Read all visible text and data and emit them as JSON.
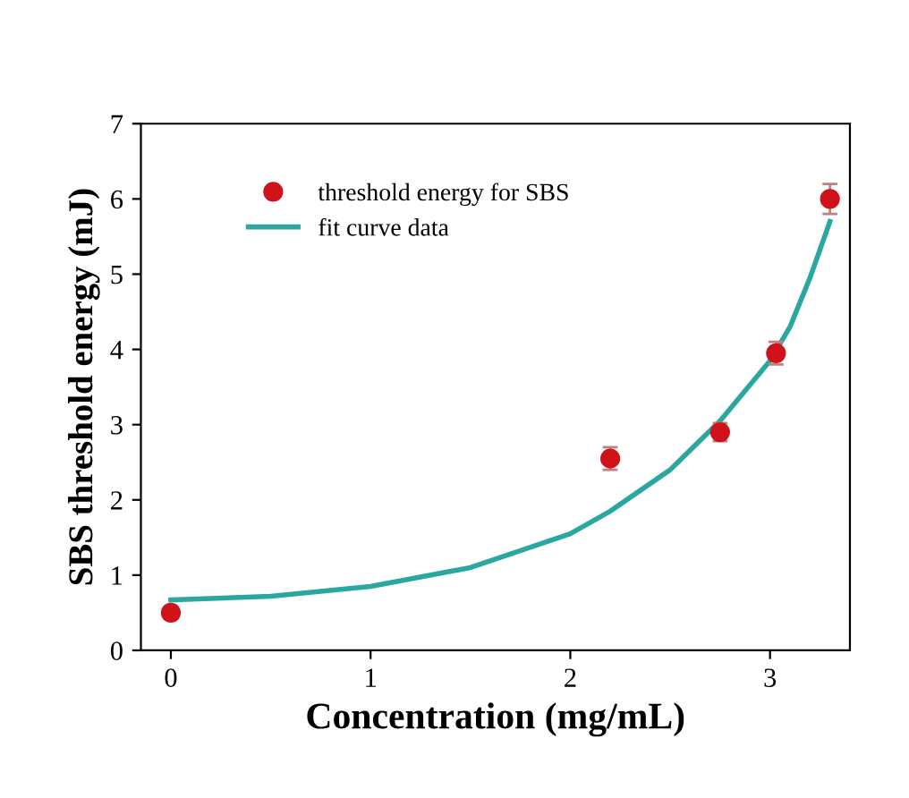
{
  "chart_data": {
    "type": "scatter",
    "xlabel": "Concentration (mg/mL)",
    "ylabel": "SBS threshold energy (mJ)",
    "xlim": [
      -0.15,
      3.4
    ],
    "xticks": [
      0,
      1,
      2,
      3
    ],
    "ylim": [
      0,
      7
    ],
    "yticks": [
      0,
      1,
      2,
      3,
      4,
      5,
      6,
      7
    ],
    "grid": false,
    "legend": "top left",
    "series": [
      {
        "name": "threshold energy for SBS",
        "color": "#d0121b",
        "marker": "circle",
        "x": [
          0,
          2.2,
          2.75,
          3.03,
          3.3
        ],
        "values": [
          0.5,
          2.55,
          2.9,
          3.95,
          6.0
        ],
        "errors": [
          0.08,
          0.15,
          0.12,
          0.15,
          0.2
        ]
      },
      {
        "name": "fit curve data",
        "type": "line",
        "color": "#2aa7a0",
        "marker": "none",
        "line_style": "solid",
        "x": [
          0,
          0.5,
          1,
          1.5,
          2.0,
          2.2,
          2.5,
          2.75,
          3.0,
          3.1,
          3.2,
          3.3
        ],
        "values": [
          0.67,
          0.72,
          0.85,
          1.1,
          1.55,
          1.85,
          2.4,
          3.05,
          3.85,
          4.3,
          4.95,
          5.7
        ]
      }
    ]
  }
}
